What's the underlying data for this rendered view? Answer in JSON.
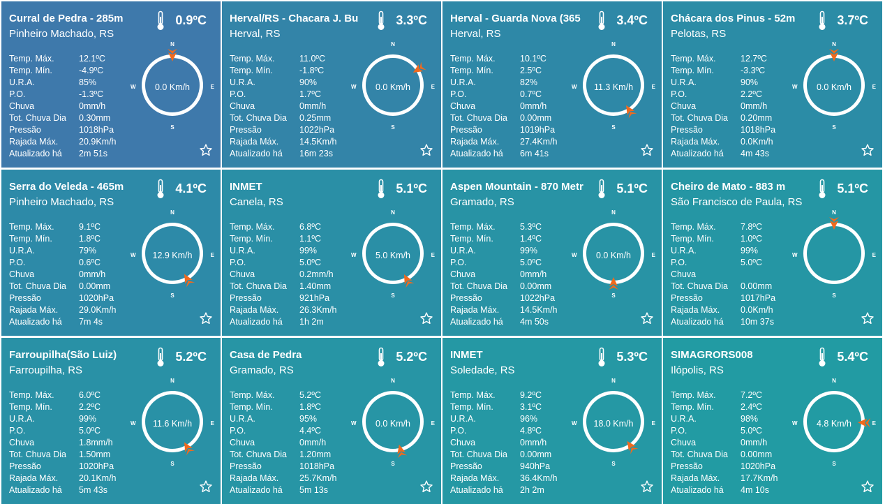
{
  "labels": {
    "tmax": "Temp. Máx.",
    "tmin": "Temp. Mín.",
    "ura": "U.R.A.",
    "po": "P.O.",
    "chuva": "Chuva",
    "tot": "Tot. Chuva Dia",
    "pressao": "Pressão",
    "rajada": "Rajada Máx.",
    "atual": "Atualizado há"
  },
  "compass_labels": {
    "n": "N",
    "s": "S",
    "w": "W",
    "e": "E"
  },
  "colors": {
    "needle": "#f06a1e",
    "card_start": "#3e7aaa",
    "card_end": "#1e9a9e"
  },
  "icons": {
    "temperature": "thermometer-icon",
    "favorite": "star-outline-icon",
    "wind": "wind-direction-arrow-icon"
  },
  "stations": [
    {
      "name": "Curral de Pedra - 285m",
      "city": "Pinheiro Machado, RS",
      "temp": "0.9ºC",
      "tmax": "12.1ºC",
      "tmin": "-4.9ºC",
      "ura": "85%",
      "po": "-1.3ºC",
      "chuva": "0mm/h",
      "tot": "0.30mm",
      "pressao": "1018hPa",
      "rajada": "20.9Km/h",
      "atual": "2m 51s",
      "wind": "0.0 Km/h",
      "wind_dir_deg": 0,
      "bg": "#3e79ab"
    },
    {
      "name": "Herval/RS - Chacara J. Bu",
      "city": "Herval, RS",
      "temp": "3.3ºC",
      "tmax": "11.0ºC",
      "tmin": "-1.8ºC",
      "ura": "90%",
      "po": "1.7ºC",
      "chuva": "0mm/h",
      "tot": "0.25mm",
      "pressao": "1022hPa",
      "rajada": "14.5Km/h",
      "atual": "16m 23s",
      "wind": "0.0 Km/h",
      "wind_dir_deg": 58,
      "bg": "#3384a8"
    },
    {
      "name": "Herval - Guarda Nova (365",
      "city": "Herval, RS",
      "temp": "3.4ºC",
      "tmax": "10.1ºC",
      "tmin": "2.5ºC",
      "ura": "82%",
      "po": "0.7ºC",
      "chuva": "0mm/h",
      "tot": "0.00mm",
      "pressao": "1019hPa",
      "rajada": "27.4Km/h",
      "atual": "6m 41s",
      "wind": "11.3 Km/h",
      "wind_dir_deg": 148,
      "bg": "#2e88a7"
    },
    {
      "name": "Chácara dos Pinus - 52m",
      "city": "Pelotas, RS",
      "temp": "3.7ºC",
      "tmax": "12.7ºC",
      "tmin": "-3.3ºC",
      "ura": "90%",
      "po": "2.2ºC",
      "chuva": "0mm/h",
      "tot": "0.20mm",
      "pressao": "1018hPa",
      "rajada": "0.0Km/h",
      "atual": "4m 43s",
      "wind": "0.0 Km/h",
      "wind_dir_deg": 0,
      "bg": "#2b8ca6"
    },
    {
      "name": "Serra do Veleda - 465m",
      "city": "Pinheiro Machado, RS",
      "temp": "4.1ºC",
      "tmax": "9.1ºC",
      "tmin": "1.8ºC",
      "ura": "79%",
      "po": "0.6ºC",
      "chuva": "0mm/h",
      "tot": "0.00mm",
      "pressao": "1020hPa",
      "rajada": "29.0Km/h",
      "atual": "7m 4s",
      "wind": "12.9 Km/h",
      "wind_dir_deg": 150,
      "bg": "#2d8aa8"
    },
    {
      "name": "INMET",
      "city": "Canela, RS",
      "temp": "5.1ºC",
      "tmax": "6.8ºC",
      "tmin": "1.1ºC",
      "ura": "99%",
      "po": "5.0ºC",
      "chuva": "0.2mm/h",
      "tot": "1.40mm",
      "pressao": "921hPa",
      "rajada": "26.3Km/h",
      "atual": "1h 2m",
      "wind": "5.0 Km/h",
      "wind_dir_deg": 152,
      "bg": "#2a8fa6"
    },
    {
      "name": "Aspen Mountain - 870 Metr",
      "city": "Gramado, RS",
      "temp": "5.1ºC",
      "tmax": "5.3ºC",
      "tmin": "1.4ºC",
      "ura": "99%",
      "po": "5.0ºC",
      "chuva": "0mm/h",
      "tot": "0.00mm",
      "pressao": "1022hPa",
      "rajada": "14.5Km/h",
      "atual": "4m 50s",
      "wind": "0.0 Km/h",
      "wind_dir_deg": 180,
      "bg": "#2893a5"
    },
    {
      "name": "Cheiro de Mato - 883 m",
      "city": "São Francisco de Paula, RS",
      "temp": "5.1ºC",
      "tmax": "7.8ºC",
      "tmin": "1.0ºC",
      "ura": "99%",
      "po": "5.0ºC",
      "chuva": "",
      "tot": "0.00mm",
      "pressao": "1017hPa",
      "rajada": "0.0Km/h",
      "atual": "10m 37s",
      "wind": "",
      "wind_dir_deg": 0,
      "bg": "#2596a4"
    },
    {
      "name": "Farroupilha(São Luiz)",
      "city": "Farroupilha, RS",
      "temp": "5.2ºC",
      "tmax": "6.0ºC",
      "tmin": "2.2ºC",
      "ura": "99%",
      "po": "5.0ºC",
      "chuva": "1.8mm/h",
      "tot": "1.50mm",
      "pressao": "1020hPa",
      "rajada": "20.1Km/h",
      "atual": "5m 43s",
      "wind": "11.6 Km/h",
      "wind_dir_deg": 150,
      "bg": "#2991a6"
    },
    {
      "name": "Casa de Pedra",
      "city": "Gramado, RS",
      "temp": "5.2ºC",
      "tmax": "5.2ºC",
      "tmin": "1.8ºC",
      "ura": "95%",
      "po": "4.4ºC",
      "chuva": "0mm/h",
      "tot": "1.20mm",
      "pressao": "1018hPa",
      "rajada": "25.7Km/h",
      "atual": "5m 13s",
      "wind": "0.0 Km/h",
      "wind_dir_deg": 165,
      "bg": "#2795a5"
    },
    {
      "name": "INMET",
      "city": "Soledade, RS",
      "temp": "5.3ºC",
      "tmax": "9.2ºC",
      "tmin": "3.1ºC",
      "ura": "96%",
      "po": "4.8ºC",
      "chuva": "0mm/h",
      "tot": "0.00mm",
      "pressao": "940hPa",
      "rajada": "36.4Km/h",
      "atual": "2h 2m",
      "wind": "18.0 Km/h",
      "wind_dir_deg": 145,
      "bg": "#2598a4"
    },
    {
      "name": "SIMAGRORS008",
      "city": "Ilópolis, RS",
      "temp": "5.4ºC",
      "tmax": "7.2ºC",
      "tmin": "2.4ºC",
      "ura": "98%",
      "po": "5.0ºC",
      "chuva": "0mm/h",
      "tot": "0.00mm",
      "pressao": "1020hPa",
      "rajada": "17.7Km/h",
      "atual": "4m 10s",
      "wind": "4.8 Km/h",
      "wind_dir_deg": 92,
      "bg": "#229ba3"
    }
  ]
}
